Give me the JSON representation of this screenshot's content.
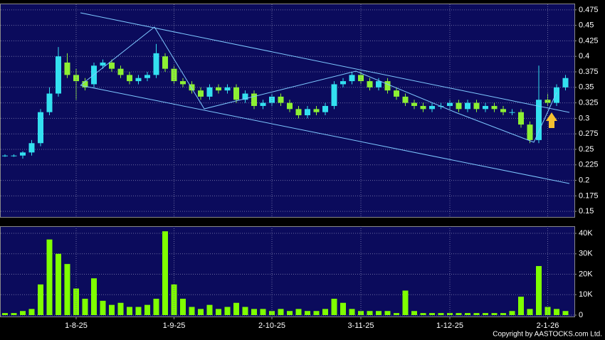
{
  "chart_data": [
    {
      "type": "candlestick",
      "up_color": "#33e0f0",
      "down_color": "#8df033",
      "background": "#0b0b5c",
      "grid": true,
      "ylim": [
        0.141,
        0.484
      ],
      "yticks": [
        0.15,
        0.175,
        0.2,
        0.225,
        0.25,
        0.275,
        0.3,
        0.325,
        0.35,
        0.375,
        0.4,
        0.425,
        0.45,
        0.475
      ],
      "open": [
        0.24,
        0.24,
        0.24,
        0.245,
        0.26,
        0.31,
        0.34,
        0.39,
        0.37,
        0.36,
        0.355,
        0.385,
        0.39,
        0.38,
        0.37,
        0.36,
        0.365,
        0.37,
        0.4,
        0.38,
        0.36,
        0.355,
        0.345,
        0.335,
        0.35,
        0.345,
        0.35,
        0.33,
        0.34,
        0.32,
        0.325,
        0.335,
        0.325,
        0.315,
        0.305,
        0.315,
        0.31,
        0.32,
        0.355,
        0.36,
        0.37,
        0.36,
        0.35,
        0.36,
        0.345,
        0.335,
        0.325,
        0.32,
        0.315,
        0.32,
        0.32,
        0.325,
        0.315,
        0.325,
        0.315,
        0.32,
        0.315,
        0.31,
        0.31,
        0.29,
        0.265,
        0.33,
        0.325,
        0.35
      ],
      "high": [
        0.242,
        0.242,
        0.247,
        0.265,
        0.315,
        0.35,
        0.415,
        0.405,
        0.38,
        0.365,
        0.39,
        0.395,
        0.395,
        0.385,
        0.375,
        0.37,
        0.375,
        0.42,
        0.405,
        0.385,
        0.365,
        0.36,
        0.35,
        0.355,
        0.355,
        0.355,
        0.355,
        0.345,
        0.345,
        0.33,
        0.34,
        0.34,
        0.33,
        0.32,
        0.32,
        0.32,
        0.325,
        0.36,
        0.365,
        0.375,
        0.375,
        0.365,
        0.365,
        0.365,
        0.35,
        0.34,
        0.33,
        0.325,
        0.325,
        0.325,
        0.33,
        0.33,
        0.33,
        0.33,
        0.325,
        0.325,
        0.32,
        0.315,
        0.315,
        0.295,
        0.385,
        0.34,
        0.355,
        0.37
      ],
      "low": [
        0.238,
        0.238,
        0.235,
        0.24,
        0.255,
        0.305,
        0.335,
        0.365,
        0.33,
        0.345,
        0.35,
        0.38,
        0.375,
        0.365,
        0.355,
        0.355,
        0.36,
        0.365,
        0.375,
        0.355,
        0.35,
        0.34,
        0.33,
        0.33,
        0.34,
        0.34,
        0.325,
        0.325,
        0.315,
        0.315,
        0.32,
        0.32,
        0.31,
        0.3,
        0.3,
        0.305,
        0.305,
        0.315,
        0.35,
        0.355,
        0.355,
        0.345,
        0.345,
        0.34,
        0.33,
        0.32,
        0.315,
        0.31,
        0.31,
        0.315,
        0.315,
        0.31,
        0.31,
        0.31,
        0.31,
        0.31,
        0.305,
        0.305,
        0.285,
        0.26,
        0.26,
        0.32,
        0.32,
        0.345
      ],
      "close": [
        0.24,
        0.24,
        0.245,
        0.26,
        0.31,
        0.34,
        0.4,
        0.37,
        0.36,
        0.35,
        0.385,
        0.39,
        0.38,
        0.37,
        0.36,
        0.365,
        0.37,
        0.405,
        0.38,
        0.36,
        0.355,
        0.345,
        0.335,
        0.35,
        0.345,
        0.35,
        0.33,
        0.34,
        0.32,
        0.325,
        0.335,
        0.325,
        0.315,
        0.305,
        0.315,
        0.31,
        0.32,
        0.355,
        0.36,
        0.37,
        0.36,
        0.35,
        0.36,
        0.345,
        0.335,
        0.325,
        0.32,
        0.315,
        0.32,
        0.32,
        0.325,
        0.315,
        0.325,
        0.315,
        0.32,
        0.315,
        0.31,
        0.31,
        0.29,
        0.265,
        0.33,
        0.325,
        0.35,
        0.365
      ]
    },
    {
      "type": "bar",
      "color": "#7fff00",
      "background": "#0b0b5c",
      "grid": true,
      "ylim": [
        0,
        43500
      ],
      "yticks": [
        0,
        {
          "value": 10000,
          "label": "10K"
        },
        {
          "value": 20000,
          "label": "20K"
        },
        {
          "value": 30000,
          "label": "30K"
        },
        {
          "value": 40000,
          "label": "40K"
        }
      ],
      "categories": [
        null,
        null,
        null,
        null,
        null,
        null,
        null,
        null,
        "1-8-25",
        null,
        null,
        null,
        null,
        null,
        null,
        null,
        null,
        null,
        null,
        "1-9-25",
        null,
        null,
        null,
        null,
        null,
        null,
        null,
        null,
        null,
        null,
        "2-10-25",
        null,
        null,
        null,
        null,
        null,
        null,
        null,
        null,
        null,
        "3-11-25",
        null,
        null,
        null,
        null,
        null,
        null,
        null,
        null,
        null,
        "1-12-25",
        null,
        null,
        null,
        null,
        null,
        null,
        null,
        null,
        null,
        null,
        "2-1-26",
        null,
        null
      ],
      "values": [
        1000,
        1000,
        2000,
        3000,
        15000,
        37000,
        30000,
        25000,
        13000,
        8000,
        18000,
        7000,
        5000,
        6000,
        4000,
        4000,
        5000,
        8000,
        41000,
        15000,
        8000,
        4000,
        3000,
        5000,
        3000,
        4000,
        6000,
        4000,
        3000,
        3000,
        2000,
        3000,
        2000,
        3000,
        2000,
        2000,
        3000,
        8000,
        6000,
        3000,
        2000,
        2000,
        2000,
        2000,
        1000,
        12000,
        2000,
        1000,
        1000,
        1000,
        1000,
        1000,
        1000,
        1000,
        1000,
        1000,
        1000,
        2000,
        9000,
        3000,
        24000,
        4000,
        3000,
        2000
      ]
    }
  ],
  "footer": "Copyright by AASTOCKS.com Ltd."
}
